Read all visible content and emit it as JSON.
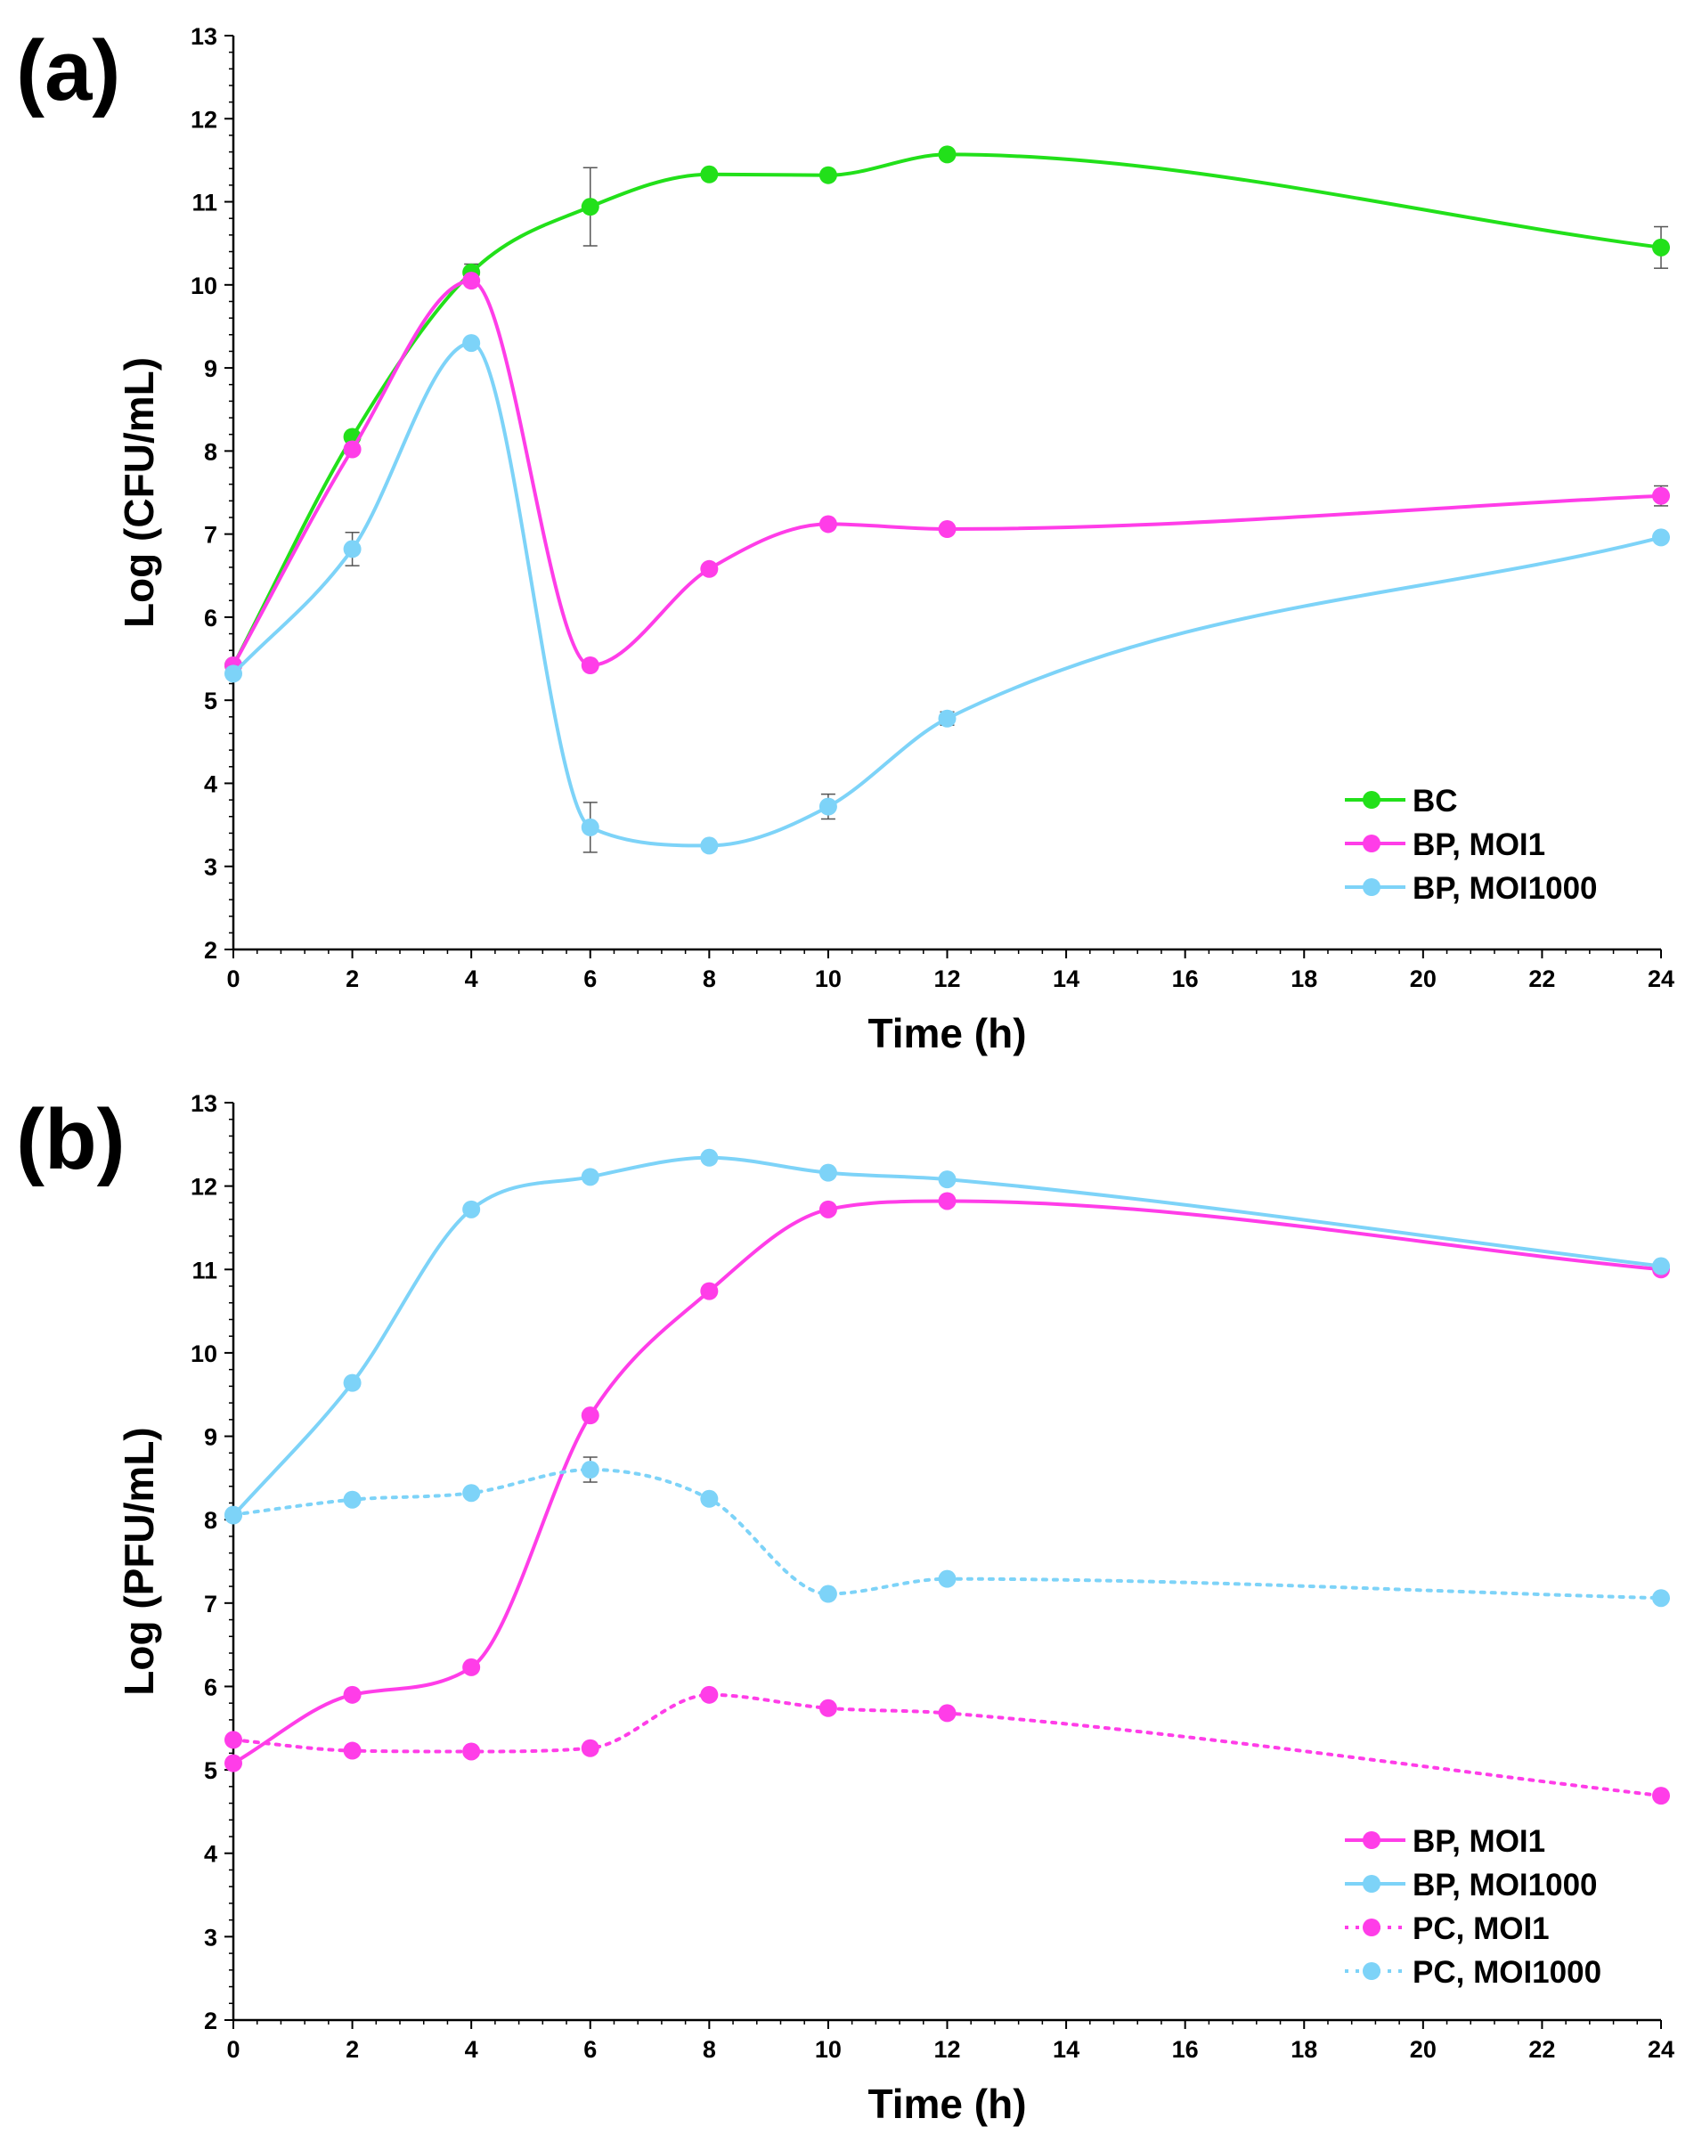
{
  "chart_data": [
    {
      "type": "line",
      "panel_label": "(a)",
      "xlabel": "Time (h)",
      "ylabel": "Log (CFU/mL)",
      "x_ticks": [
        "0",
        "2",
        "4",
        "6",
        "8",
        "10",
        "12",
        "14",
        "16",
        "18",
        "20",
        "22",
        "24"
      ],
      "y_ticks": [
        "2",
        "3",
        "4",
        "5",
        "6",
        "7",
        "8",
        "9",
        "10",
        "11",
        "12",
        "13"
      ],
      "xlim": [
        0,
        24
      ],
      "ylim": [
        2,
        13
      ],
      "grid": false,
      "legend_position": "bottom-right",
      "x": [
        0,
        2,
        4,
        6,
        8,
        10,
        12,
        24
      ],
      "series": [
        {
          "name": "BC",
          "color": "#22e01a",
          "dashed": false,
          "values": [
            5.42,
            8.17,
            10.15,
            10.94,
            11.33,
            11.32,
            11.57,
            10.45
          ],
          "errors": [
            0.05,
            0.05,
            0.1,
            0.47,
            0.05,
            0.05,
            0.05,
            0.25
          ]
        },
        {
          "name": "BP, MOI1",
          "color": "#ff3de8",
          "dashed": false,
          "values": [
            5.42,
            8.02,
            10.05,
            5.42,
            6.58,
            7.12,
            7.06,
            7.46
          ],
          "errors": [
            0.05,
            0.05,
            0.05,
            0.05,
            0.05,
            0.05,
            0.05,
            0.12
          ]
        },
        {
          "name": "BP, MOI1000",
          "color": "#7dd3f8",
          "dashed": false,
          "values": [
            5.32,
            6.82,
            9.3,
            3.47,
            3.25,
            3.72,
            4.78,
            6.96
          ],
          "errors": [
            0.05,
            0.2,
            0.05,
            0.3,
            0.05,
            0.15,
            0.08,
            0.05
          ]
        }
      ]
    },
    {
      "type": "line",
      "panel_label": "(b)",
      "xlabel": "Time (h)",
      "ylabel": "Log (PFU/mL)",
      "x_ticks": [
        "0",
        "2",
        "4",
        "6",
        "8",
        "10",
        "12",
        "14",
        "16",
        "18",
        "20",
        "22",
        "24"
      ],
      "y_ticks": [
        "2",
        "3",
        "4",
        "5",
        "6",
        "7",
        "8",
        "9",
        "10",
        "11",
        "12",
        "13"
      ],
      "xlim": [
        0,
        24
      ],
      "ylim": [
        2,
        13
      ],
      "grid": false,
      "legend_position": "bottom-right",
      "x": [
        0,
        2,
        4,
        6,
        8,
        10,
        12,
        24
      ],
      "series": [
        {
          "name": "BP, MOI1",
          "color": "#ff3de8",
          "dashed": false,
          "values": [
            5.08,
            5.9,
            6.23,
            9.25,
            10.74,
            11.72,
            11.82,
            11.0
          ]
        },
        {
          "name": "BP, MOI1000",
          "color": "#7dd3f8",
          "dashed": false,
          "values": [
            8.05,
            9.64,
            11.72,
            12.11,
            12.34,
            12.16,
            12.08,
            11.04
          ]
        },
        {
          "name": "PC, MOI1",
          "color": "#ff3de8",
          "dashed": true,
          "values": [
            5.36,
            5.23,
            5.22,
            5.26,
            5.9,
            5.74,
            5.68,
            4.69
          ]
        },
        {
          "name": "PC, MOI1000",
          "color": "#7dd3f8",
          "dashed": true,
          "values": [
            8.06,
            8.24,
            8.32,
            8.6,
            8.25,
            7.11,
            7.29,
            7.06
          ],
          "errors": [
            0.03,
            0.03,
            0.03,
            0.15,
            0.03,
            0.03,
            0.03,
            0.03
          ]
        }
      ]
    }
  ]
}
